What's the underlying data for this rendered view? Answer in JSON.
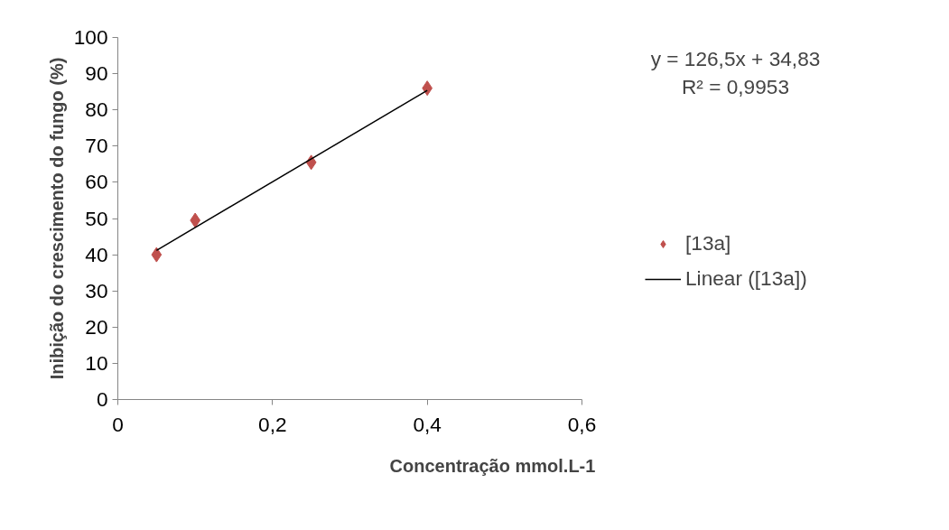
{
  "chart_data": {
    "type": "scatter",
    "xlabel": "Concentração mmol.L-1",
    "ylabel": "Inibição do crescimento do fungo (%)",
    "x": [
      0.05,
      0.1,
      0.25,
      0.4
    ],
    "series": [
      {
        "name": "[13a]",
        "color": "#c0504d",
        "values": [
          40,
          49.5,
          65.5,
          86
        ],
        "marker": "diamond"
      },
      {
        "name": "Linear ([13a])",
        "type": "line",
        "color": "#000000",
        "x": [
          0.05,
          0.4
        ],
        "values": [
          41.2,
          85.4
        ],
        "marker": "none"
      }
    ],
    "xlim": [
      0,
      0.6
    ],
    "xticks": [
      {
        "value": 0,
        "label": "0"
      },
      {
        "value": 0.2,
        "label": "0,2"
      },
      {
        "value": 0.4,
        "label": "0,4"
      },
      {
        "value": 0.6,
        "label": "0,6"
      }
    ],
    "ylim": [
      0,
      100
    ],
    "yticks": [
      0,
      10,
      20,
      30,
      40,
      50,
      60,
      70,
      80,
      90,
      100
    ],
    "grid": false,
    "legend": "right",
    "annotations": [
      "y = 126,5x + 34,83\nR² = 0,9953"
    ]
  }
}
